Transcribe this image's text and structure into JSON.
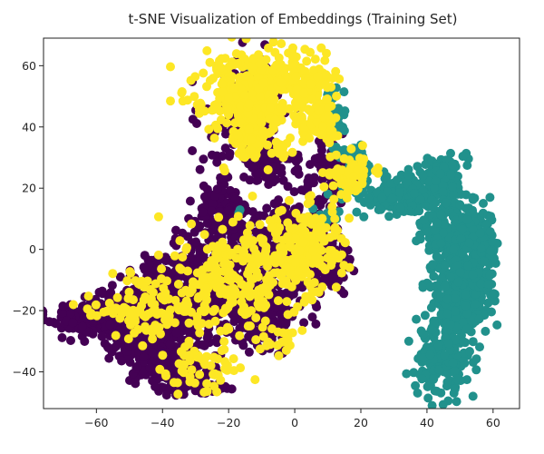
{
  "chart_data": {
    "type": "scatter",
    "title": "t-SNE Visualization of Embeddings (Training Set)",
    "xlabel": "",
    "ylabel": "",
    "xlim": [
      -76,
      68
    ],
    "ylim": [
      -52,
      69
    ],
    "xticks": [
      -60,
      -40,
      -20,
      0,
      20,
      40,
      60
    ],
    "yticks": [
      -40,
      -20,
      0,
      20,
      40,
      60
    ],
    "xtick_labels": [
      "−60",
      "−40",
      "−20",
      "0",
      "20",
      "40",
      "60"
    ],
    "ytick_labels": [
      "−40",
      "−20",
      "0",
      "20",
      "40",
      "60"
    ],
    "grid": false,
    "legend": "none",
    "colormap": "viridis",
    "series": [
      {
        "color": "#440154",
        "regions": [
          {
            "cx": -58,
            "cy": -22,
            "rx": 14,
            "ry": 5,
            "n": 260
          },
          {
            "cx": -45,
            "cy": -25,
            "rx": 12,
            "ry": 10,
            "n": 320
          },
          {
            "cx": -35,
            "cy": -15,
            "rx": 12,
            "ry": 12,
            "n": 320
          },
          {
            "cx": -38,
            "cy": -38,
            "rx": 9,
            "ry": 6,
            "n": 160
          },
          {
            "cx": -20,
            "cy": -8,
            "rx": 12,
            "ry": 14,
            "n": 300
          },
          {
            "cx": -8,
            "cy": -20,
            "rx": 9,
            "ry": 9,
            "n": 160
          },
          {
            "cx": -3,
            "cy": 5,
            "rx": 10,
            "ry": 9,
            "n": 180
          },
          {
            "cx": 8,
            "cy": -3,
            "rx": 7,
            "ry": 12,
            "n": 150
          },
          {
            "cx": -22,
            "cy": 12,
            "rx": 7,
            "ry": 9,
            "n": 100
          },
          {
            "cx": -15,
            "cy": 42,
            "rx": 10,
            "ry": 16,
            "n": 170
          },
          {
            "cx": -8,
            "cy": 28,
            "rx": 6,
            "ry": 6,
            "n": 70
          },
          {
            "cx": 12,
            "cy": 25,
            "rx": 8,
            "ry": 8,
            "n": 90
          },
          {
            "cx": -30,
            "cy": -45,
            "rx": 8,
            "ry": 2,
            "n": 70
          }
        ]
      },
      {
        "color": "#21918c",
        "regions": [
          {
            "cx": 32,
            "cy": 18,
            "rx": 14,
            "ry": 5,
            "n": 180
          },
          {
            "cx": 44,
            "cy": 24,
            "rx": 6,
            "ry": 6,
            "n": 80
          },
          {
            "cx": 48,
            "cy": 5,
            "rx": 8,
            "ry": 10,
            "n": 240
          },
          {
            "cx": 50,
            "cy": -15,
            "rx": 7,
            "ry": 12,
            "n": 280
          },
          {
            "cx": 45,
            "cy": -35,
            "rx": 7,
            "ry": 10,
            "n": 180
          },
          {
            "cx": 56,
            "cy": -5,
            "rx": 5,
            "ry": 10,
            "n": 120
          },
          {
            "cx": 18,
            "cy": 31,
            "rx": 5,
            "ry": 4,
            "n": 40
          },
          {
            "cx": 12,
            "cy": 45,
            "rx": 4,
            "ry": 5,
            "n": 30
          },
          {
            "cx": 10,
            "cy": 10,
            "rx": 3,
            "ry": 4,
            "n": 14
          },
          {
            "cx": -10,
            "cy": 57,
            "rx": 4,
            "ry": 3,
            "n": 8
          },
          {
            "cx": -17,
            "cy": 13,
            "rx": 1,
            "ry": 1,
            "n": 2
          }
        ]
      },
      {
        "color": "#fde725",
        "regions": [
          {
            "cx": -12,
            "cy": 55,
            "rx": 16,
            "ry": 9,
            "n": 260
          },
          {
            "cx": -12,
            "cy": 40,
            "rx": 10,
            "ry": 9,
            "n": 140
          },
          {
            "cx": 4,
            "cy": 53,
            "rx": 6,
            "ry": 8,
            "n": 90
          },
          {
            "cx": 7,
            "cy": 40,
            "rx": 6,
            "ry": 4,
            "n": 50
          },
          {
            "cx": 16,
            "cy": 25,
            "rx": 6,
            "ry": 7,
            "n": 60
          },
          {
            "cx": 5,
            "cy": 2,
            "rx": 10,
            "ry": 10,
            "n": 130
          },
          {
            "cx": -8,
            "cy": -5,
            "rx": 12,
            "ry": 14,
            "n": 130
          },
          {
            "cx": -22,
            "cy": -10,
            "rx": 12,
            "ry": 14,
            "n": 130
          },
          {
            "cx": -40,
            "cy": -20,
            "rx": 14,
            "ry": 12,
            "n": 110
          },
          {
            "cx": -28,
            "cy": -40,
            "rx": 10,
            "ry": 6,
            "n": 50
          },
          {
            "cx": -55,
            "cy": -20,
            "rx": 8,
            "ry": 3,
            "n": 20
          },
          {
            "cx": -5,
            "cy": -30,
            "rx": 6,
            "ry": 4,
            "n": 20
          }
        ]
      }
    ]
  }
}
